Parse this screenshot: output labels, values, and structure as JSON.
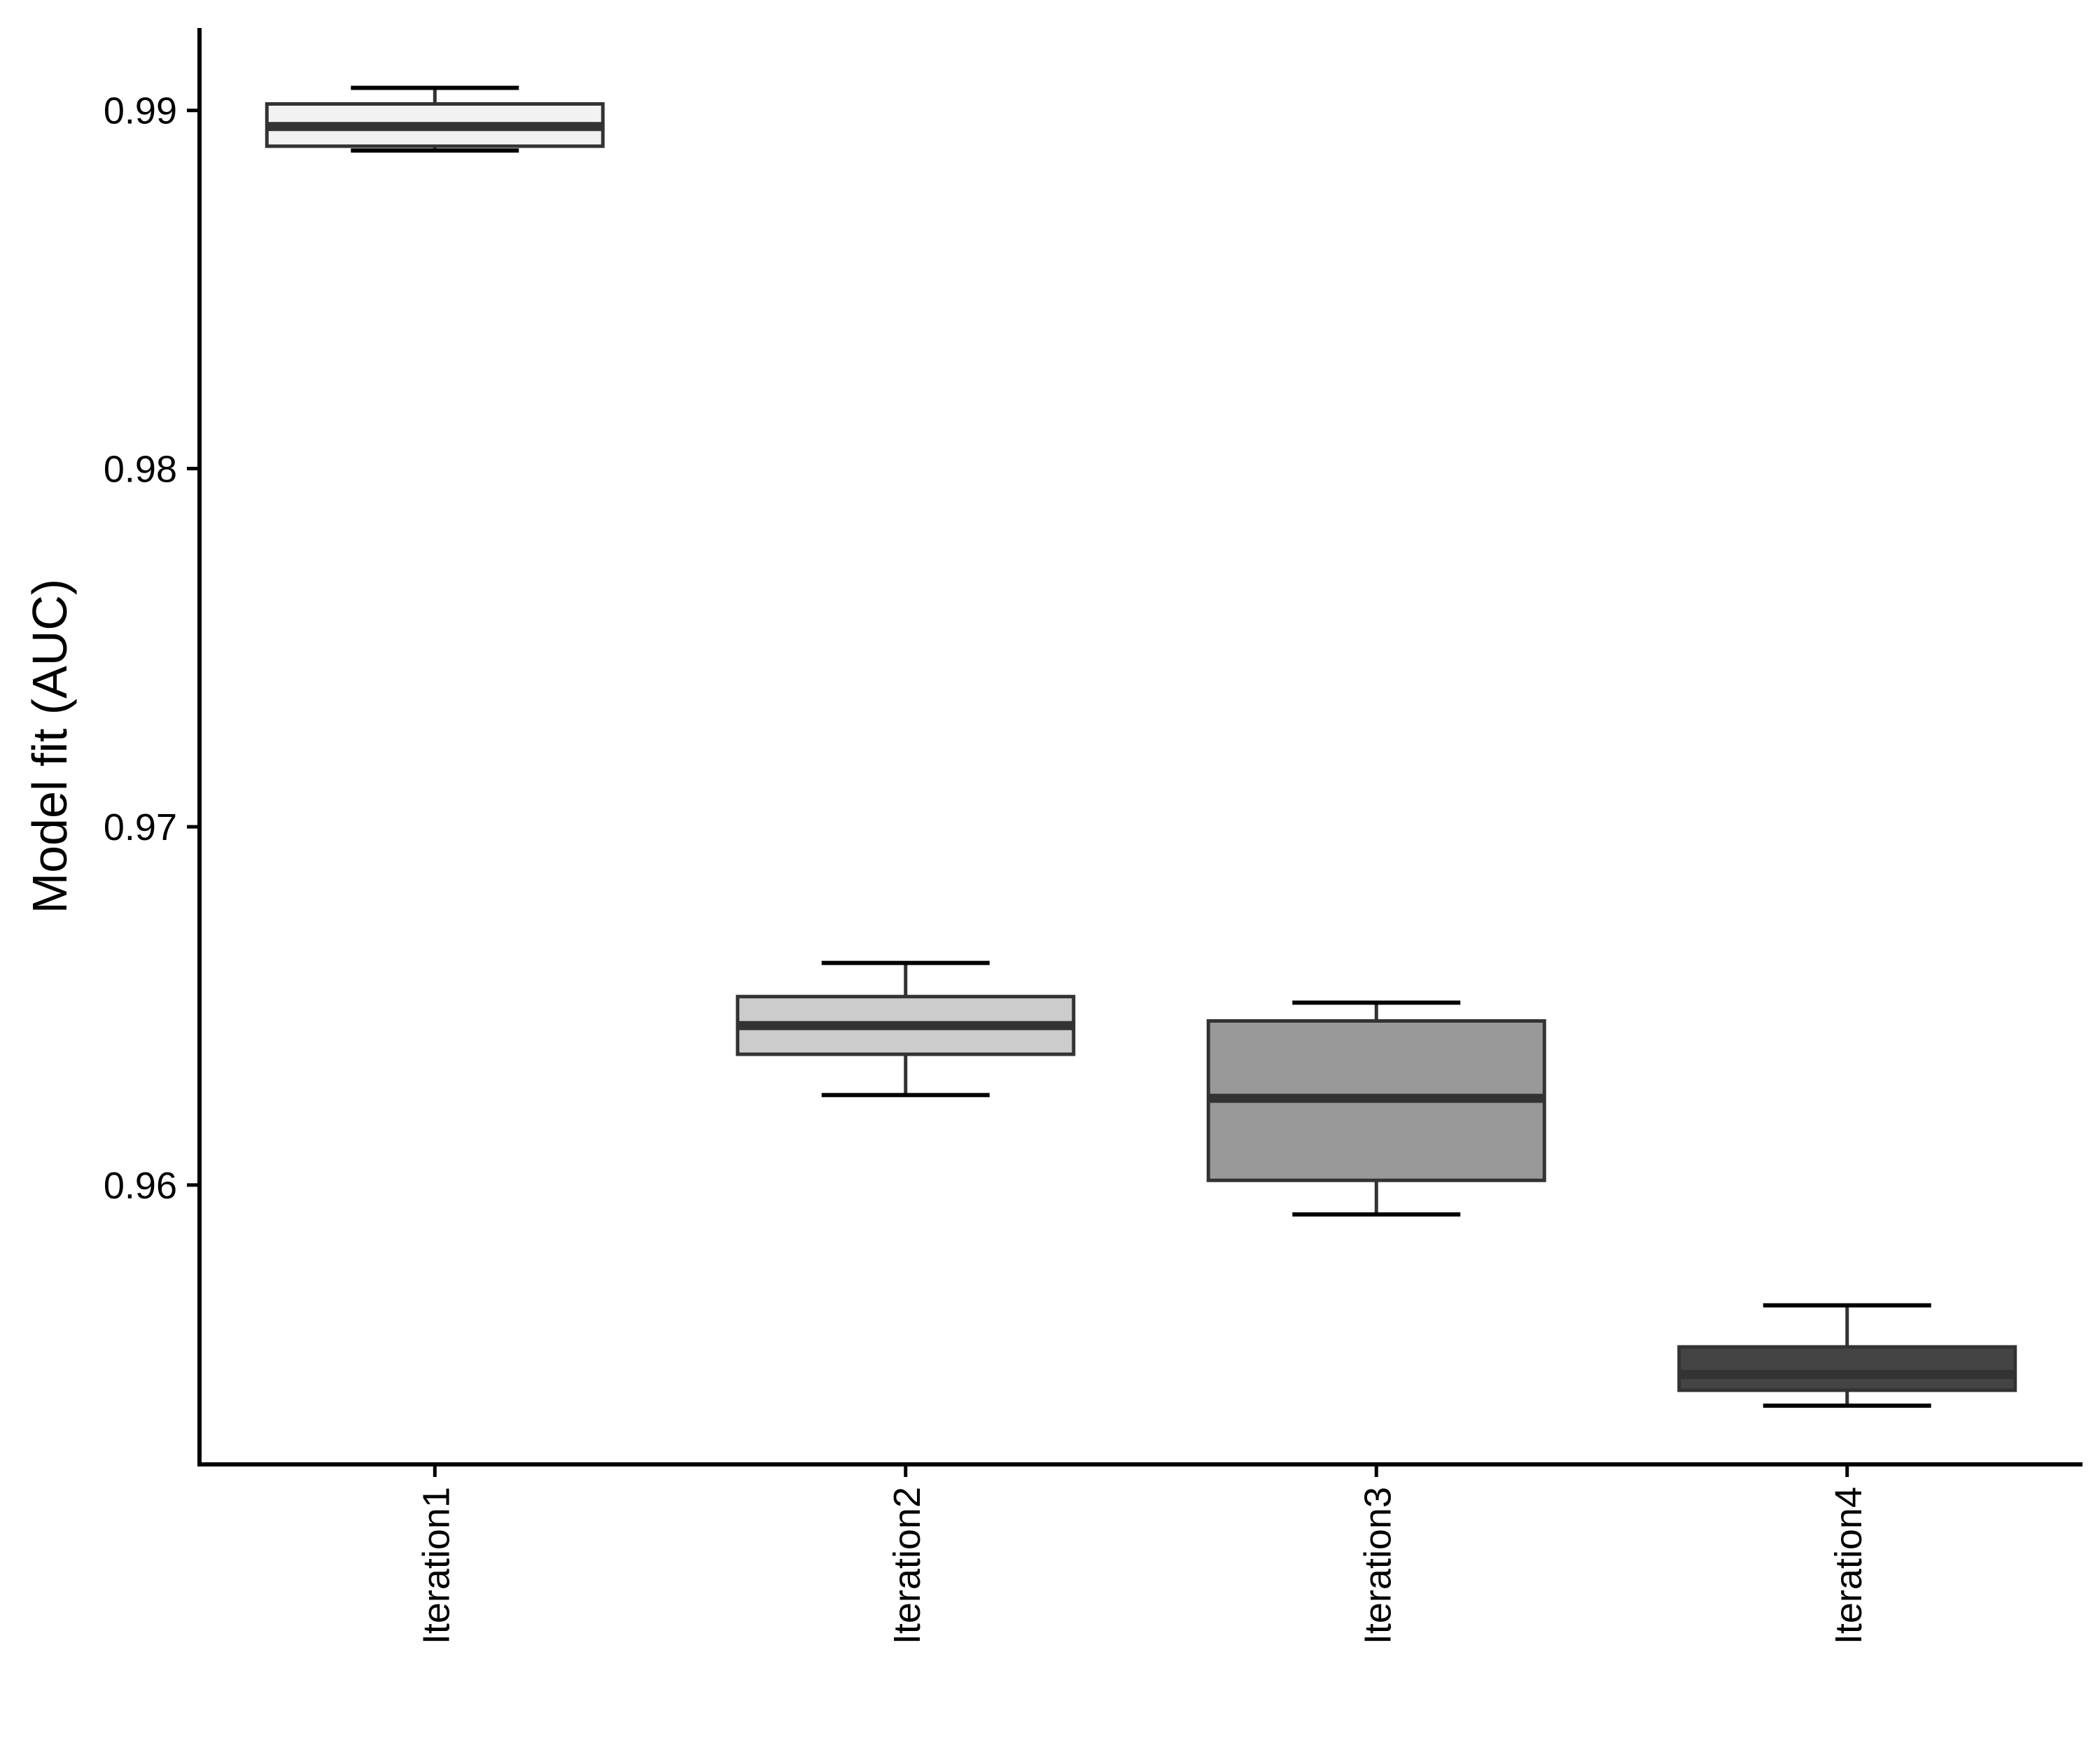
{
  "chart_data": {
    "type": "boxplot",
    "title": "",
    "xlabel": "",
    "ylabel": "Model fit (AUC)",
    "categories": [
      "Iteration1",
      "Iteration2",
      "Iteration3",
      "Iteration4"
    ],
    "boxes": [
      {
        "category": "Iteration1",
        "whisker_low": 0.98888,
        "q1": 0.989,
        "median": 0.98955,
        "q3": 0.99018,
        "whisker_high": 0.99063,
        "fill": "#f2f2f2"
      },
      {
        "category": "Iteration2",
        "whisker_low": 0.96251,
        "q1": 0.96365,
        "median": 0.96445,
        "q3": 0.96526,
        "whisker_high": 0.9662,
        "fill": "#cccccc"
      },
      {
        "category": "Iteration3",
        "whisker_low": 0.95918,
        "q1": 0.96013,
        "median": 0.96242,
        "q3": 0.96458,
        "whisker_high": 0.96509,
        "fill": "#999999"
      },
      {
        "category": "Iteration4",
        "whisker_low": 0.95384,
        "q1": 0.95427,
        "median": 0.95471,
        "q3": 0.95548,
        "whisker_high": 0.95664,
        "fill": "#444444"
      }
    ],
    "yticks": [
      0.96,
      0.97,
      0.98,
      0.99
    ],
    "ytick_labels": [
      "0.96",
      "0.97",
      "0.98",
      "0.99"
    ],
    "ylim": [
      0.9522,
      0.9923
    ],
    "grid": false,
    "legend": "none",
    "colors": {
      "outline": "#333333",
      "axis": "#000000"
    }
  }
}
